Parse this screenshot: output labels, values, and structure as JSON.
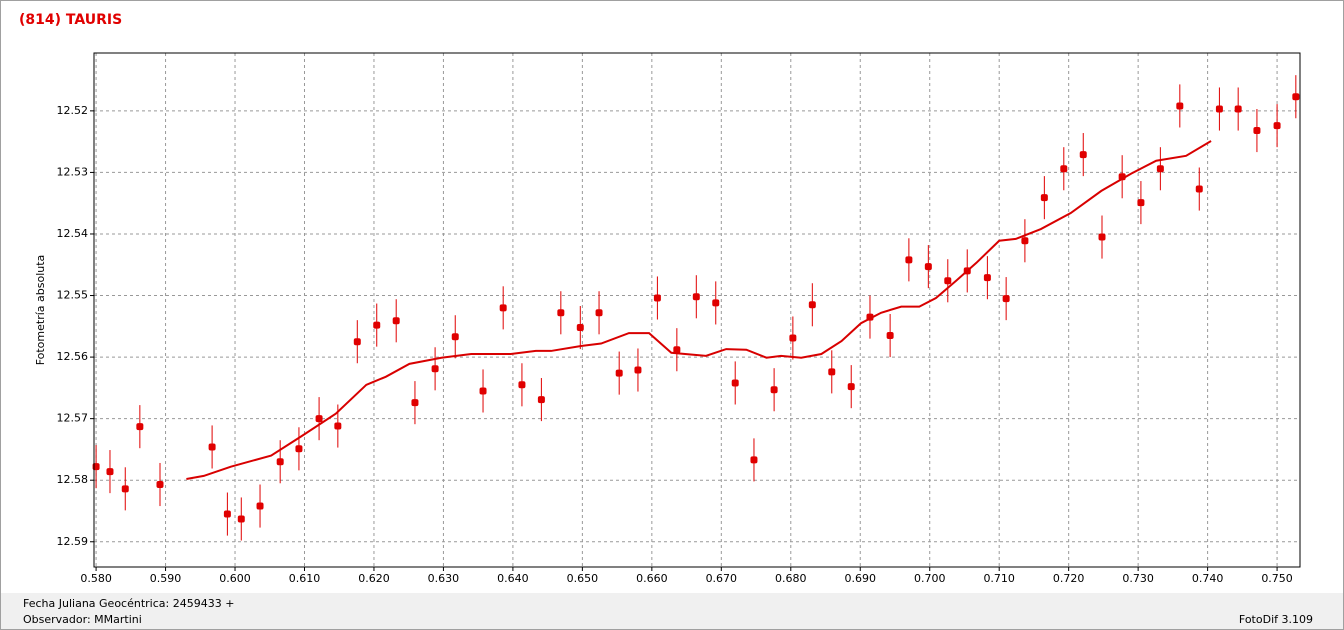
{
  "chart_data": {
    "type": "scatter",
    "title": "(814) TAURIS",
    "y_label": "Fotometría absoluta",
    "xlim": [
      0.5797,
      0.7533
    ],
    "ylim": [
      12.5941,
      12.5106
    ],
    "grid": true,
    "xticks": [
      {
        "value": 0.58,
        "label": "0.580"
      },
      {
        "value": 0.59,
        "label": "0.590"
      },
      {
        "value": 0.6,
        "label": "0.600"
      },
      {
        "value": 0.61,
        "label": "0.610"
      },
      {
        "value": 0.62,
        "label": "0.620"
      },
      {
        "value": 0.63,
        "label": "0.630"
      },
      {
        "value": 0.64,
        "label": "0.640"
      },
      {
        "value": 0.65,
        "label": "0.650"
      },
      {
        "value": 0.66,
        "label": "0.660"
      },
      {
        "value": 0.67,
        "label": "0.670"
      },
      {
        "value": 0.68,
        "label": "0.680"
      },
      {
        "value": 0.69,
        "label": "0.690"
      },
      {
        "value": 0.7,
        "label": "0.700"
      },
      {
        "value": 0.71,
        "label": "0.710"
      },
      {
        "value": 0.72,
        "label": "0.720"
      },
      {
        "value": 0.73,
        "label": "0.730"
      },
      {
        "value": 0.74,
        "label": "0.740"
      },
      {
        "value": 0.75,
        "label": "0.750"
      }
    ],
    "yticks": [
      12.52,
      12.53,
      12.54,
      12.55,
      12.56,
      12.57,
      12.58,
      12.59
    ],
    "series": [
      {
        "color": "#e00000",
        "kind": "points",
        "x": [
          0.58,
          0.582,
          0.5842,
          0.5863,
          0.5892,
          0.5967,
          0.5989,
          0.6009,
          0.6036,
          0.6065,
          0.6092,
          0.6121,
          0.6148,
          0.6176,
          0.6204,
          0.6232,
          0.6259,
          0.6288,
          0.6317,
          0.6357,
          0.6386,
          0.6413,
          0.6441,
          0.6469,
          0.6497,
          0.6524,
          0.6553,
          0.658,
          0.6608,
          0.6636,
          0.6664,
          0.6692,
          0.672,
          0.6747,
          0.6776,
          0.6803,
          0.6831,
          0.6859,
          0.6887,
          0.6914,
          0.6943,
          0.697,
          0.6998,
          0.7026,
          0.7054,
          0.7083,
          0.711,
          0.7137,
          0.7165,
          0.7193,
          0.7221,
          0.7248,
          0.7277,
          0.7304,
          0.7332,
          0.736,
          0.7388,
          0.7417,
          0.7444,
          0.7471,
          0.75,
          0.7527
        ],
        "values": [
          12.5778,
          12.5786,
          12.5814,
          12.5713,
          12.5807,
          12.5746,
          12.5855,
          12.5863,
          12.5842,
          12.577,
          12.5749,
          12.57,
          12.5712,
          12.5575,
          12.5548,
          12.5541,
          12.5674,
          12.5619,
          12.5567,
          12.5655,
          12.552,
          12.5645,
          12.5669,
          12.5528,
          12.5552,
          12.5528,
          12.5626,
          12.5621,
          12.5504,
          12.5588,
          12.5502,
          12.5512,
          12.5642,
          12.5767,
          12.5653,
          12.5569,
          12.5515,
          12.5624,
          12.5648,
          12.5535,
          12.5565,
          12.5442,
          12.5453,
          12.5476,
          12.546,
          12.5471,
          12.5505,
          12.5411,
          12.5341,
          12.5294,
          12.5271,
          12.5405,
          12.5307,
          12.5349,
          12.5294,
          12.5192,
          12.5327,
          12.5197,
          12.5197,
          12.5232,
          12.5224,
          12.5177
        ],
        "errors": [
          0.0035,
          0.0035,
          0.0035,
          0.0035,
          0.0035,
          0.0035,
          0.0035,
          0.0035,
          0.0035,
          0.0035,
          0.0035,
          0.0035,
          0.0035,
          0.0035,
          0.0035,
          0.0035,
          0.0035,
          0.0035,
          0.0035,
          0.0035,
          0.0035,
          0.0035,
          0.0035,
          0.0035,
          0.0035,
          0.0035,
          0.0035,
          0.0035,
          0.0035,
          0.0035,
          0.0035,
          0.0035,
          0.0035,
          0.0035,
          0.0035,
          0.0035,
          0.0035,
          0.0035,
          0.0035,
          0.0035,
          0.0035,
          0.0035,
          0.0035,
          0.0035,
          0.0035,
          0.0035,
          0.0035,
          0.0035,
          0.0035,
          0.0035,
          0.0035,
          0.0035,
          0.0035,
          0.0035,
          0.0035,
          0.0035,
          0.0035,
          0.0035,
          0.0035,
          0.0035,
          0.0035,
          0.0035
        ]
      },
      {
        "color": "#d80000",
        "kind": "line",
        "x": [
          0.593,
          0.5955,
          0.5994,
          0.6052,
          0.6095,
          0.6145,
          0.6189,
          0.6217,
          0.6251,
          0.6297,
          0.634,
          0.6397,
          0.6433,
          0.6455,
          0.6498,
          0.6527,
          0.6567,
          0.6596,
          0.6628,
          0.6678,
          0.6707,
          0.6736,
          0.6765,
          0.6786,
          0.6815,
          0.6844,
          0.6873,
          0.6901,
          0.693,
          0.6959,
          0.6985,
          0.7009,
          0.7038,
          0.7067,
          0.71,
          0.7124,
          0.716,
          0.7203,
          0.7247,
          0.729,
          0.7326,
          0.7369,
          0.7405
        ],
        "values": [
          12.5798,
          12.5793,
          12.5778,
          12.576,
          12.5729,
          12.5692,
          12.5645,
          12.5632,
          12.5611,
          12.5601,
          12.5595,
          12.5595,
          12.559,
          12.559,
          12.5582,
          12.5578,
          12.5561,
          12.5561,
          12.5593,
          12.5598,
          12.5587,
          12.5588,
          12.5601,
          12.5598,
          12.5601,
          12.5595,
          12.5574,
          12.5545,
          12.5528,
          12.5518,
          12.5518,
          12.5504,
          12.5476,
          12.5447,
          12.5411,
          12.5408,
          12.5392,
          12.5366,
          12.533,
          12.5302,
          12.5281,
          12.5273,
          12.5249
        ]
      }
    ]
  },
  "footer": {
    "date": "Fecha Juliana Geocéntrica: 2459433 +",
    "observer": "Observador: MMartini",
    "app": "FotoDif 3.109"
  }
}
